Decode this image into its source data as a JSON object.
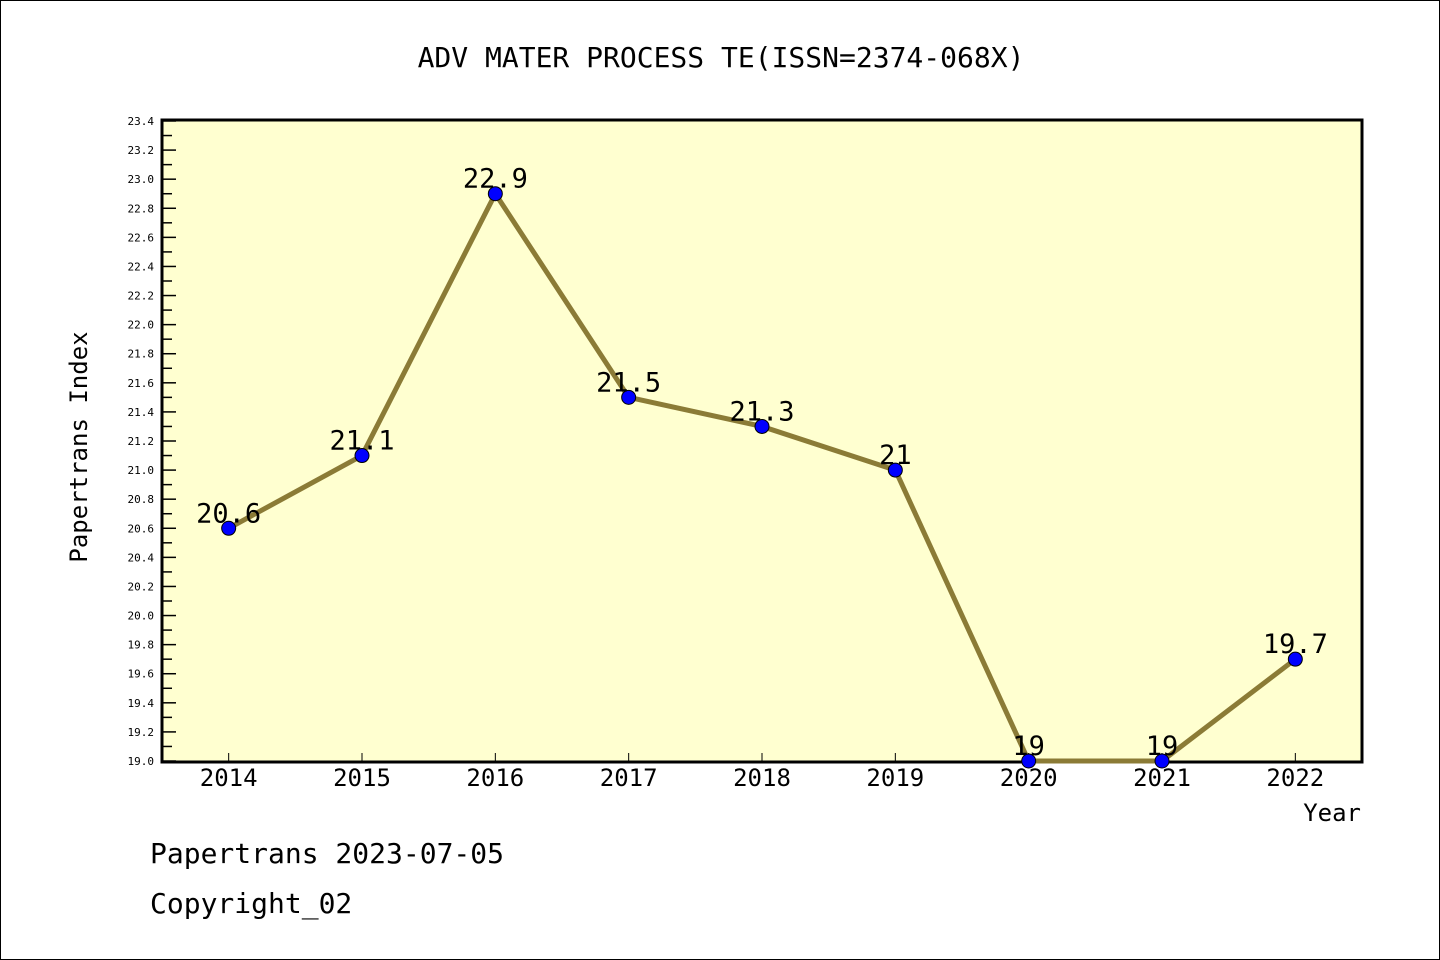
{
  "chart_data": {
    "type": "line",
    "title": "ADV MATER PROCESS TE(ISSN=2374-068X)",
    "xlabel": "Year",
    "ylabel": "Papertrans Index",
    "categories": [
      "2014",
      "2015",
      "2016",
      "2017",
      "2018",
      "2019",
      "2020",
      "2021",
      "2022"
    ],
    "values": [
      20.6,
      21.1,
      22.9,
      21.5,
      21.3,
      21,
      19,
      19,
      19.7
    ],
    "data_labels": [
      "20.6",
      "21.1",
      "22.9",
      "21.5",
      "21.3",
      "21",
      "19",
      "19",
      "19.7"
    ],
    "ylim": [
      19.0,
      23.4
    ],
    "yticks": [
      "19.0",
      "19.2",
      "19.4",
      "19.6",
      "19.8",
      "20.0",
      "20.2",
      "20.4",
      "20.6",
      "20.8",
      "21.0",
      "21.2",
      "21.4",
      "21.6",
      "21.8",
      "22.0",
      "22.2",
      "22.4",
      "22.6",
      "22.8",
      "23.0",
      "23.2",
      "23.4"
    ],
    "grid": false,
    "colors": {
      "plot_bg": "#ffffd0",
      "line": "#8b7b36",
      "marker": "#0000ff"
    }
  },
  "footer": {
    "line1": "Papertrans 2023-07-05",
    "line2": "Copyright_02"
  }
}
